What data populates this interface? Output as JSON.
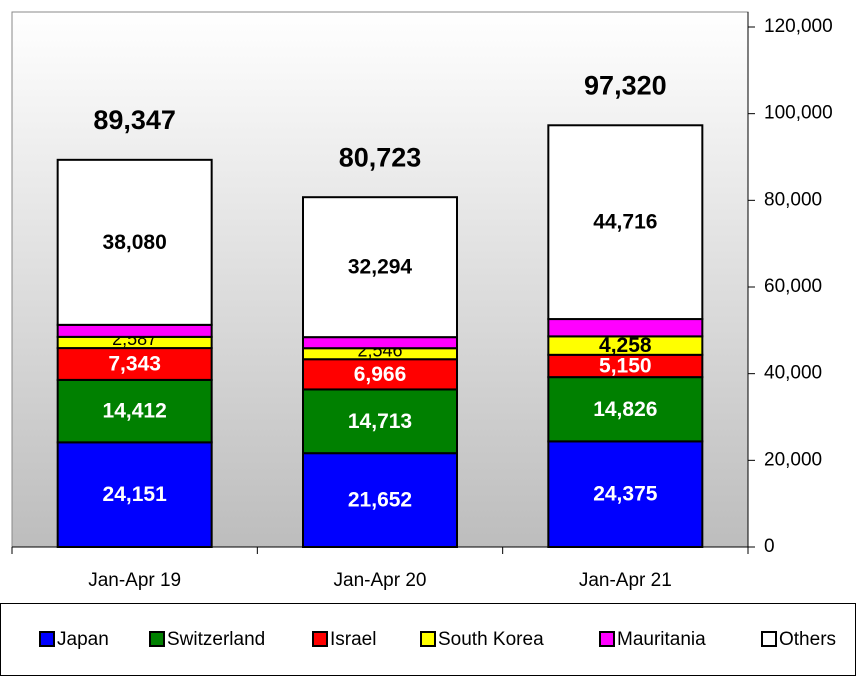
{
  "chart_data": {
    "type": "stacked-bar",
    "categories": [
      "Jan-Apr 19",
      "Jan-Apr 20",
      "Jan-Apr 21"
    ],
    "series": [
      {
        "name": "Japan",
        "color": "#0000ff",
        "values": [
          24151,
          21652,
          24375
        ],
        "value_labels": [
          "24,151",
          "21,652",
          "24,375"
        ]
      },
      {
        "name": "Switzerland",
        "color": "#008000",
        "values": [
          14412,
          14713,
          14826
        ],
        "value_labels": [
          "14,412",
          "14,713",
          "14,826"
        ]
      },
      {
        "name": "Israel",
        "color": "#ff0000",
        "values": [
          7343,
          6966,
          5150
        ],
        "value_labels": [
          "7,343",
          "6,966",
          "5,150"
        ]
      },
      {
        "name": "South Korea",
        "color": "#ffff00",
        "values": [
          2587,
          2546,
          4258
        ],
        "value_labels": [
          "2,587",
          "2,546",
          "4,258"
        ]
      },
      {
        "name": "Mauritania",
        "color": "#ff00ff",
        "values": [
          2774,
          2552,
          3995
        ]
      },
      {
        "name": "Others",
        "color": "#ffffff",
        "values": [
          38080,
          32294,
          44716
        ],
        "value_labels": [
          "38,080",
          "32,294",
          "44,716"
        ]
      }
    ],
    "totals": {
      "values": [
        89347,
        80723,
        97320
      ],
      "value_labels": [
        "89,347",
        "80,723",
        "97,320"
      ]
    },
    "ylim": [
      0,
      120000
    ],
    "yticks": [
      0,
      {
        "value": 20000,
        "label": "20,000"
      },
      {
        "value": 40000,
        "label": "40,000"
      },
      {
        "value": 60000,
        "label": "60,000"
      },
      {
        "value": 80000,
        "label": "80,000"
      },
      {
        "value": 100000,
        "label": "100,000"
      },
      {
        "value": 120000,
        "label": "120,000"
      }
    ],
    "y_axis_side": "right"
  }
}
